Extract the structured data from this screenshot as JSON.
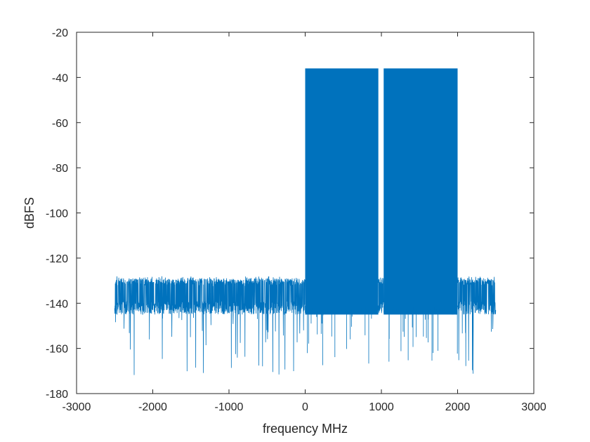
{
  "chart_data": {
    "type": "line",
    "xlabel": "frequency MHz",
    "ylabel": "dBFS",
    "xlim": [
      -3000,
      3000
    ],
    "ylim": [
      -180,
      -20
    ],
    "xticks": [
      -3000,
      -2000,
      -1000,
      0,
      1000,
      2000,
      3000
    ],
    "yticks": [
      -20,
      -40,
      -60,
      -80,
      -100,
      -120,
      -140,
      -160,
      -180
    ],
    "grid": false,
    "series": [
      {
        "color": "#0072BD",
        "x_range": [
          -2500,
          2500
        ],
        "noise_floor": {
          "top": -130,
          "center": -136,
          "bottom": -145,
          "min_spikes": -172
        },
        "signal_bands": [
          {
            "x_start": 0,
            "x_end": 960,
            "top": -36
          },
          {
            "x_start": 1030,
            "x_end": 2000,
            "top": -36
          }
        ]
      }
    ]
  }
}
